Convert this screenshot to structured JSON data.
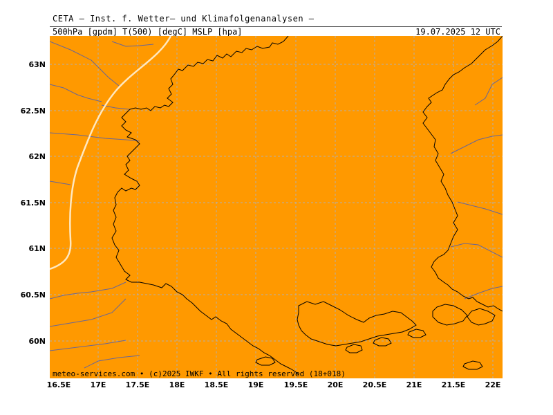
{
  "header": {
    "title": "CETA — Inst. f. Wetter— und Klimafolgenanalysen —",
    "subtitle": "500hPa [gpdm] T(500) [degC] MSLP [hpa]",
    "datetime": "19.07.2025 12 UTC"
  },
  "map": {
    "fill_color": "#ff9900",
    "coast_color": "#000000",
    "border_color": "#666699",
    "grid_color": "#b0b0b0",
    "isoline_color": "#ffe8c0",
    "lat_labels": [
      "63N",
      "62.5N",
      "62N",
      "61.5N",
      "61N",
      "60.5N",
      "60N"
    ],
    "lon_labels": [
      "16.5E",
      "17E",
      "17.5E",
      "18E",
      "18.5E",
      "19E",
      "19.5E",
      "20E",
      "20.5E",
      "21E",
      "21.5E",
      "22E"
    ]
  },
  "footer": {
    "credit": "meteo-services.com • (c)2025 IWKF • All rights reserved (18+018)"
  }
}
